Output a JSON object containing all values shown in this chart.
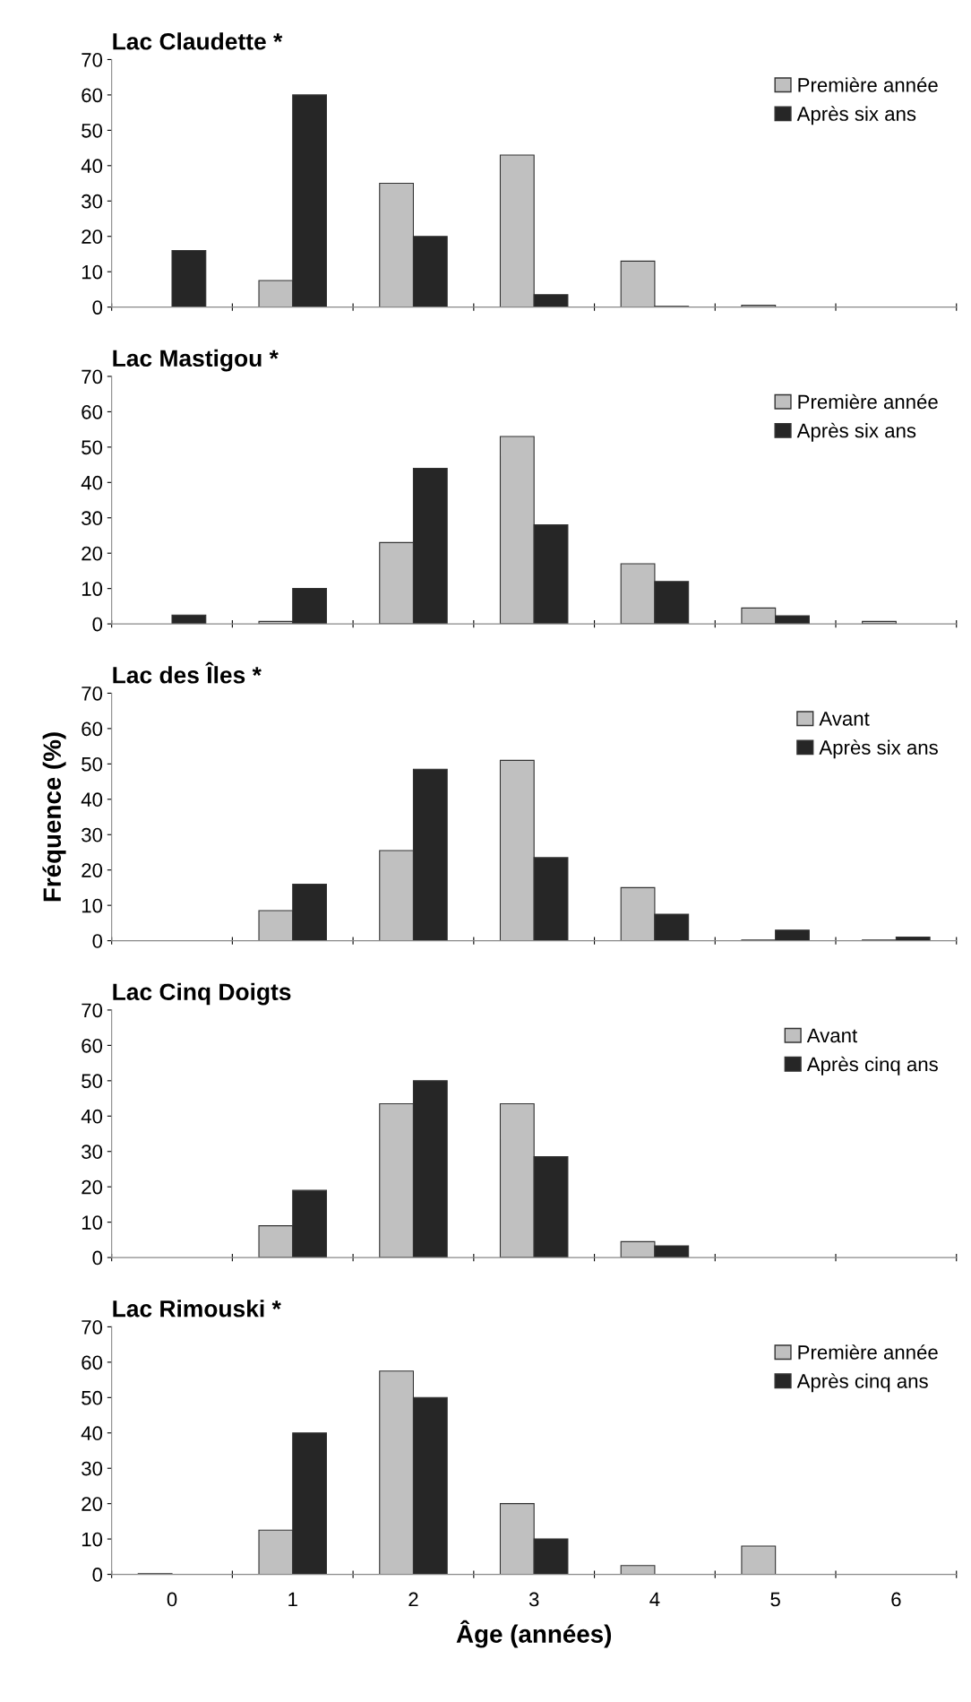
{
  "chart_data": [
    {
      "type": "bar",
      "title": "Lac Claudette *",
      "categories": [
        "0",
        "1",
        "2",
        "3",
        "4",
        "5",
        "6"
      ],
      "ylim": [
        0,
        70
      ],
      "yticks": [
        0,
        10,
        20,
        30,
        40,
        50,
        60,
        70
      ],
      "grid": false,
      "legend": "top right",
      "tick_labels": "y",
      "series": [
        {
          "name": "Première année",
          "color": "#c0c0c0",
          "values": [
            0,
            7.5,
            35,
            43,
            13,
            0.5,
            0
          ]
        },
        {
          "name": "Après six ans",
          "color": "#262626",
          "values": [
            16,
            60,
            20,
            3.5,
            0.2,
            0,
            0
          ]
        }
      ]
    },
    {
      "type": "bar",
      "title": "Lac Mastigou *",
      "categories": [
        "0",
        "1",
        "2",
        "3",
        "4",
        "5",
        "6"
      ],
      "ylim": [
        0,
        70
      ],
      "yticks": [
        0,
        10,
        20,
        30,
        40,
        50,
        60,
        70
      ],
      "grid": false,
      "legend": "top right",
      "tick_labels": "y",
      "series": [
        {
          "name": "Première année",
          "color": "#c0c0c0",
          "values": [
            0,
            0.7,
            23,
            53,
            17,
            4.5,
            0.7
          ]
        },
        {
          "name": "Après six ans",
          "color": "#262626",
          "values": [
            2.5,
            10,
            44,
            28,
            12,
            2.3,
            null
          ]
        }
      ]
    },
    {
      "type": "bar",
      "title": "Lac des Îles *",
      "ylabel": "Fréquence (%)",
      "categories": [
        "0",
        "1",
        "2",
        "3",
        "4",
        "5",
        "6"
      ],
      "ylim": [
        0,
        70
      ],
      "yticks": [
        0,
        10,
        20,
        30,
        40,
        50,
        60,
        70
      ],
      "grid": false,
      "legend": "top right",
      "tick_labels": "y",
      "series": [
        {
          "name": "Avant",
          "color": "#c0c0c0",
          "values": [
            0,
            8.5,
            25.5,
            51,
            15,
            0.2,
            0.2
          ]
        },
        {
          "name": "Après six ans",
          "color": "#262626",
          "values": [
            0,
            16,
            48.5,
            23.5,
            7.5,
            3,
            1
          ]
        }
      ]
    },
    {
      "type": "bar",
      "title": "Lac Cinq Doigts",
      "categories": [
        "0",
        "1",
        "2",
        "3",
        "4",
        "5",
        "6"
      ],
      "ylim": [
        0,
        70
      ],
      "yticks": [
        0,
        10,
        20,
        30,
        40,
        50,
        60,
        70
      ],
      "grid": false,
      "legend": "top right",
      "tick_labels": "y",
      "series": [
        {
          "name": "Avant",
          "color": "#c0c0c0",
          "values": [
            0,
            9,
            43.5,
            43.5,
            4.5,
            0,
            0
          ]
        },
        {
          "name": "Après cinq ans",
          "color": "#262626",
          "values": [
            0,
            19,
            50,
            28.5,
            3.3,
            0,
            0
          ]
        }
      ]
    },
    {
      "type": "bar",
      "title": "Lac Rimouski *",
      "xlabel": "Âge (années)",
      "categories": [
        "0",
        "1",
        "2",
        "3",
        "4",
        "5",
        "6"
      ],
      "ylim": [
        0,
        70
      ],
      "yticks": [
        0,
        10,
        20,
        30,
        40,
        50,
        60,
        70
      ],
      "grid": false,
      "legend": "top right",
      "series": [
        {
          "name": "Première année",
          "color": "#c0c0c0",
          "values": [
            0.2,
            12.5,
            57.5,
            20,
            2.5,
            8,
            0
          ]
        },
        {
          "name": "Après cinq ans",
          "color": "#262626",
          "values": [
            0,
            40,
            50,
            10,
            0,
            0,
            0
          ]
        }
      ]
    }
  ]
}
